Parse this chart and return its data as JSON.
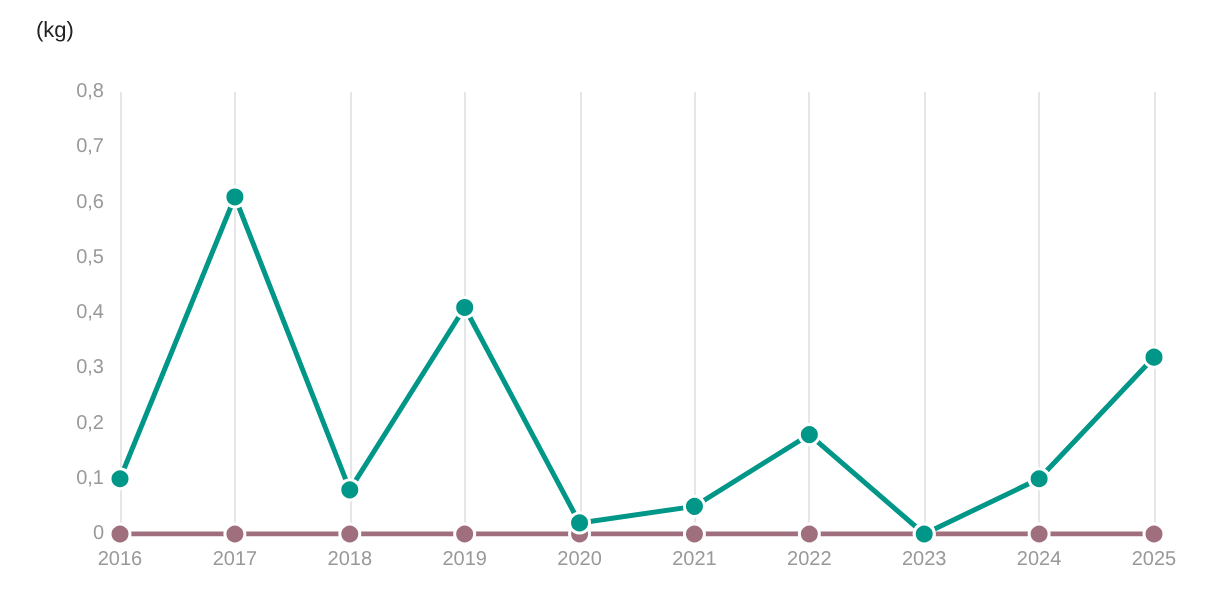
{
  "chart_data": {
    "type": "line",
    "ylabel": "(kg)",
    "x": [
      2016,
      2017,
      2018,
      2019,
      2020,
      2021,
      2022,
      2023,
      2024,
      2025
    ],
    "series": [
      {
        "color": "#a06f7e",
        "values": [
          0,
          0,
          0,
          0,
          0,
          0,
          0,
          0,
          0,
          0
        ]
      },
      {
        "color": "#009688",
        "values": [
          0.1,
          0.61,
          0.08,
          0.41,
          0.02,
          0.05,
          0.18,
          0,
          0.1,
          0.32
        ]
      }
    ],
    "xlim": [
      2016,
      2025
    ],
    "xticks": [
      2016,
      2017,
      2018,
      2019,
      2020,
      2021,
      2022,
      2023,
      2024,
      2025
    ],
    "ylim": [
      0,
      0.8
    ],
    "yticks": [
      {
        "value": 0,
        "label": "0"
      },
      {
        "value": 0.1,
        "label": "0,1"
      },
      {
        "value": 0.2,
        "label": "0,2"
      },
      {
        "value": 0.3,
        "label": "0,3"
      },
      {
        "value": 0.4,
        "label": "0,4"
      },
      {
        "value": 0.5,
        "label": "0,5"
      },
      {
        "value": 0.6,
        "label": "0,6"
      },
      {
        "value": 0.7,
        "label": "0,7"
      },
      {
        "value": 0.8,
        "label": "0,8"
      }
    ],
    "grid": "x",
    "marker": "circle",
    "line_style": "solid"
  }
}
